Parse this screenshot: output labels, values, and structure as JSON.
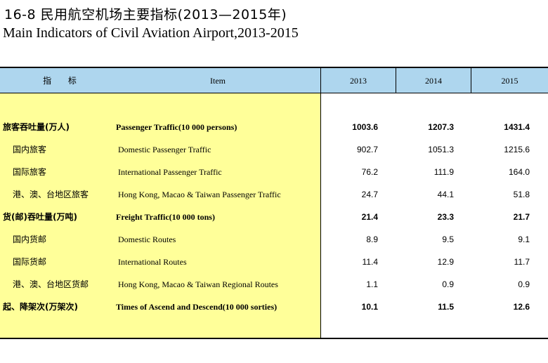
{
  "title": {
    "cn": "16-8  民用航空机场主要指标(2013—2015年)",
    "en": "Main Indicators of Civil Aviation Airport,2013-2015"
  },
  "header": {
    "indicator_cn": "指 标",
    "item_en": "Item",
    "years": [
      "2013",
      "2014",
      "2015"
    ]
  },
  "rows": [
    {
      "cn": "旅客吞吐量(万人)",
      "en": "Passenger Traffic(10 000 persons)",
      "bold": true,
      "indent": false,
      "values": [
        "1003.6",
        "1207.3",
        "1431.4"
      ]
    },
    {
      "cn": "国内旅客",
      "en": "Domestic Passenger Traffic",
      "bold": false,
      "indent": true,
      "values": [
        "902.7",
        "1051.3",
        "1215.6"
      ]
    },
    {
      "cn": "国际旅客",
      "en": "International Passenger Traffic",
      "bold": false,
      "indent": true,
      "values": [
        "76.2",
        "111.9",
        "164.0"
      ]
    },
    {
      "cn": "港、澳、台地区旅客",
      "en": "Hong Kong, Macao & Taiwan Passenger Traffic",
      "bold": false,
      "indent": true,
      "values": [
        "24.7",
        "44.1",
        "51.8"
      ]
    },
    {
      "cn": "货(邮)吞吐量(万吨)",
      "en": "Freight Traffic(10 000 tons)",
      "bold": true,
      "indent": false,
      "values": [
        "21.4",
        "23.3",
        "21.7"
      ]
    },
    {
      "cn": "国内货邮",
      "en": "Domestic Routes",
      "bold": false,
      "indent": true,
      "values": [
        "8.9",
        "9.5",
        "9.1"
      ]
    },
    {
      "cn": "国际货邮",
      "en": "International Routes",
      "bold": false,
      "indent": true,
      "values": [
        "11.4",
        "12.9",
        "11.7"
      ]
    },
    {
      "cn": "港、澳、台地区货邮",
      "en": "Hong Kong, Macao & Taiwan Regional Routes",
      "bold": false,
      "indent": true,
      "values": [
        "1.1",
        "0.9",
        "0.9"
      ]
    },
    {
      "cn": "起、降架次(万架次)",
      "en": "Times of Ascend and Descend(10 000 sorties)",
      "bold": true,
      "indent": false,
      "values": [
        "10.1",
        "11.5",
        "12.6"
      ]
    }
  ],
  "colors": {
    "header_bg": "#aed6ee",
    "label_bg": "#ffff99"
  }
}
